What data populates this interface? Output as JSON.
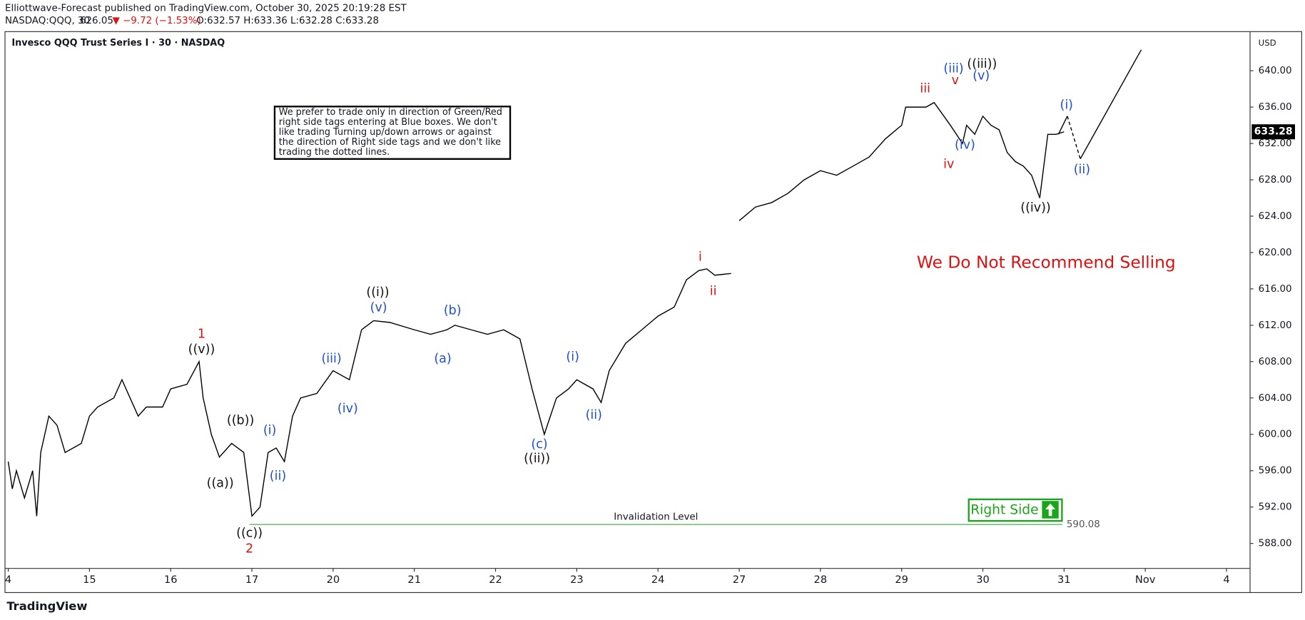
{
  "header": {
    "publisher": "Elliottwave-Forecast published on TradingView.com, October 30, 2025 20:19:28 EST",
    "symbol": "NASDAQ:QQQ, 30",
    "price": "626.05",
    "change": "▼ −9.72 (−1.53%)",
    "ohlc": "O:632.57 H:633.36 L:632.28 C:633.28"
  },
  "footer": {
    "brand": "TradingView"
  },
  "note": [
    "We prefer to trade only in direction of Green/Red",
    "right side tags entering at Blue boxes. We don't",
    "like trading Turning up/down arrows or against",
    "the direction of Right side tags and we don't like",
    "trading the dotted lines."
  ],
  "chart_data": {
    "type": "line",
    "title": "Invesco QQQ Trust Series I · 30 · NASDAQ",
    "currency": "USD",
    "x": [
      0,
      0.05,
      0.1,
      0.2,
      0.3,
      0.35,
      0.4,
      0.5,
      0.6,
      0.7,
      0.9,
      1.0,
      1.1,
      1.3,
      1.4,
      1.5,
      1.6,
      1.7,
      1.9,
      2.0,
      2.2,
      2.35,
      2.4,
      2.5,
      2.6,
      2.75,
      2.9,
      3.0,
      3.1,
      3.2,
      3.3,
      3.4,
      3.5,
      3.6,
      3.8,
      4.0,
      4.2,
      4.35,
      4.5,
      4.7,
      5.0,
      5.2,
      5.4,
      5.5,
      5.7,
      5.9,
      6.1,
      6.3,
      6.45,
      6.6,
      6.75,
      6.9,
      7.0,
      7.2,
      7.3,
      7.4,
      7.6,
      7.8,
      8.0,
      8.2,
      8.35,
      8.5,
      8.6,
      8.7,
      8.9,
      8.95,
      9.0,
      9.2,
      9.4,
      9.6,
      9.8,
      10.0,
      10.2,
      10.4,
      10.6,
      10.8,
      11.0,
      11.05,
      11.3,
      11.4,
      11.6,
      11.75,
      11.8,
      11.9,
      12.0,
      12.1,
      12.2,
      12.3,
      12.4,
      12.5,
      12.6,
      12.7,
      12.8,
      12.9,
      13.0
    ],
    "series": [
      {
        "name": "QQQ",
        "color": "#000000",
        "values": [
          597,
          594,
          596,
          593,
          596,
          591,
          598,
          602,
          601,
          598,
          599,
          602,
          603,
          604,
          606,
          604,
          602,
          603,
          603,
          605,
          605.5,
          608,
          604,
          600,
          597.5,
          599,
          598,
          591,
          592,
          598,
          598.5,
          597,
          602,
          604,
          604.5,
          607,
          606,
          611.5,
          612.5,
          612.3,
          611.5,
          611,
          611.5,
          612,
          611.5,
          611,
          611.5,
          610.5,
          605,
          600,
          604,
          605,
          606,
          605,
          603.5,
          607,
          610,
          611.5,
          613,
          614,
          617,
          618,
          618.2,
          617.5,
          617.7,
          null,
          623.5,
          625,
          625.5,
          626.5,
          628,
          629,
          628.5,
          629.5,
          630.5,
          632.5,
          634,
          636,
          636,
          636.5,
          634,
          632,
          634,
          633,
          635,
          634,
          633.5,
          631,
          630,
          629.5,
          628.5,
          626,
          633,
          633,
          633.28
        ]
      }
    ],
    "xlim": [
      -0.04,
      15.29
    ],
    "ylim": [
      585.25,
      644.3
    ],
    "xticks": [
      {
        "value": 0,
        "label": "4"
      },
      {
        "value": 1,
        "label": "15"
      },
      {
        "value": 2,
        "label": "16"
      },
      {
        "value": 3,
        "label": "17"
      },
      {
        "value": 4,
        "label": "20"
      },
      {
        "value": 5,
        "label": "21"
      },
      {
        "value": 6,
        "label": "22"
      },
      {
        "value": 7,
        "label": "23"
      },
      {
        "value": 8,
        "label": "24"
      },
      {
        "value": 9,
        "label": "27"
      },
      {
        "value": 10,
        "label": "28"
      },
      {
        "value": 11,
        "label": "29"
      },
      {
        "value": 12,
        "label": "30"
      },
      {
        "value": 13,
        "label": "31"
      },
      {
        "value": 14,
        "label": "Nov"
      },
      {
        "value": 15,
        "label": "4"
      }
    ],
    "yticks": [
      {
        "value": 588,
        "label": "588.00"
      },
      {
        "value": 592,
        "label": "592.00"
      },
      {
        "value": 596,
        "label": "596.00"
      },
      {
        "value": 600,
        "label": "600.00"
      },
      {
        "value": 604,
        "label": "604.00"
      },
      {
        "value": 608,
        "label": "608.00"
      },
      {
        "value": 612,
        "label": "612.00"
      },
      {
        "value": 616,
        "label": "616.00"
      },
      {
        "value": 620,
        "label": "620.00"
      },
      {
        "value": 624,
        "label": "624.00"
      },
      {
        "value": 628,
        "label": "628.00"
      },
      {
        "value": 632,
        "label": "632.00"
      },
      {
        "value": 636,
        "label": "636.00"
      },
      {
        "value": 640,
        "label": "640.00"
      }
    ],
    "last_price": 633.28,
    "invalidation": {
      "label": "Invalidation Level",
      "level": 590.08,
      "x": [
        2.97,
        12.98
      ],
      "color": "#4caf50"
    },
    "right_side": {
      "text": "Right Side",
      "color": "#1aa51a"
    },
    "forecast": {
      "x": [
        12.93,
        13.04,
        13.2,
        13.95
      ],
      "y": [
        633,
        635,
        630.3,
        642.3
      ],
      "styles": [
        "solid",
        "dashed",
        "solid"
      ]
    },
    "callout": {
      "text": "We Do Not Recommend Selling",
      "x": 12.78,
      "y": 618.8,
      "color": "#e01010"
    },
    "annotations": [
      {
        "text": "1",
        "x": 2.38,
        "y": 611.0,
        "color": "#e01010"
      },
      {
        "text": "((v))",
        "x": 2.38,
        "y": 609.3,
        "color": "#111111"
      },
      {
        "text": "((b))",
        "x": 2.86,
        "y": 601.5,
        "color": "#111111"
      },
      {
        "text": "((a))",
        "x": 2.61,
        "y": 594.6,
        "color": "#111111"
      },
      {
        "text": "((c))",
        "x": 2.97,
        "y": 589.1,
        "color": "#111111"
      },
      {
        "text": "2",
        "x": 2.97,
        "y": 587.4,
        "color": "#e01010"
      },
      {
        "text": "(i)",
        "x": 3.22,
        "y": 600.4,
        "color": "#1f4fc9"
      },
      {
        "text": "(ii)",
        "x": 3.32,
        "y": 595.4,
        "color": "#1f4fc9"
      },
      {
        "text": "(iii)",
        "x": 3.98,
        "y": 608.3,
        "color": "#1f4fc9"
      },
      {
        "text": "(iv)",
        "x": 4.18,
        "y": 602.8,
        "color": "#1f4fc9"
      },
      {
        "text": "((i))",
        "x": 4.55,
        "y": 615.6,
        "color": "#111111"
      },
      {
        "text": "(v)",
        "x": 4.56,
        "y": 613.9,
        "color": "#1f4fc9"
      },
      {
        "text": "(b)",
        "x": 5.47,
        "y": 613.6,
        "color": "#1f4fc9"
      },
      {
        "text": "(a)",
        "x": 5.35,
        "y": 608.3,
        "color": "#1f4fc9"
      },
      {
        "text": "(c)",
        "x": 6.54,
        "y": 598.9,
        "color": "#1f4fc9"
      },
      {
        "text": "((ii))",
        "x": 6.51,
        "y": 597.3,
        "color": "#111111"
      },
      {
        "text": "(i)",
        "x": 6.95,
        "y": 608.5,
        "color": "#1f4fc9"
      },
      {
        "text": "(ii)",
        "x": 7.21,
        "y": 602.1,
        "color": "#1f4fc9"
      },
      {
        "text": "i",
        "x": 8.52,
        "y": 619.5,
        "color": "#e01010"
      },
      {
        "text": "ii",
        "x": 8.68,
        "y": 615.7,
        "color": "#e01010"
      },
      {
        "text": "iii",
        "x": 11.29,
        "y": 638.0,
        "color": "#e01010"
      },
      {
        "text": "(iii)",
        "x": 11.64,
        "y": 640.2,
        "color": "#1f4fc9"
      },
      {
        "text": "v",
        "x": 11.66,
        "y": 638.9,
        "color": "#e01010"
      },
      {
        "text": "((iii))",
        "x": 11.99,
        "y": 640.7,
        "color": "#111111"
      },
      {
        "text": "(v)",
        "x": 11.98,
        "y": 639.4,
        "color": "#1f4fc9"
      },
      {
        "text": "(iv)",
        "x": 11.78,
        "y": 631.8,
        "color": "#1f4fc9"
      },
      {
        "text": "iv",
        "x": 11.58,
        "y": 629.7,
        "color": "#e01010"
      },
      {
        "text": "((iv))",
        "x": 12.65,
        "y": 624.9,
        "color": "#111111"
      },
      {
        "text": "(i)",
        "x": 13.03,
        "y": 636.2,
        "color": "#1f4fc9"
      },
      {
        "text": "(ii)",
        "x": 13.22,
        "y": 629.1,
        "color": "#1f4fc9"
      }
    ]
  }
}
